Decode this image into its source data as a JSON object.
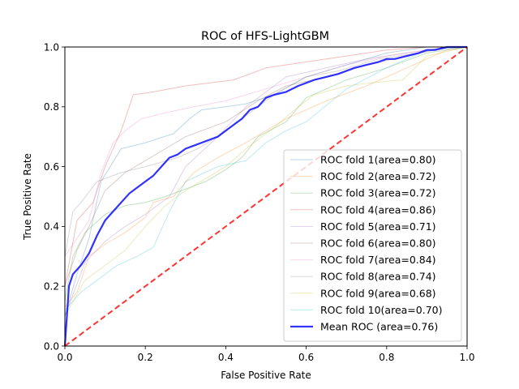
{
  "chart_data": {
    "type": "line",
    "title": "ROC of HFS-LightGBM",
    "xlabel": "False Positive Rate",
    "ylabel": "True Positive Rate",
    "xlim": [
      0.0,
      1.0
    ],
    "ylim": [
      0.0,
      1.0
    ],
    "xticks": [
      "0.0",
      "0.2",
      "0.4",
      "0.6",
      "0.8",
      "1.0"
    ],
    "yticks": [
      "0.0",
      "0.2",
      "0.4",
      "0.6",
      "0.8",
      "1.0"
    ],
    "grid": false,
    "legend_position": "lower right",
    "series": [
      {
        "name": "ROC fold 1(area=0.80)",
        "color": "#1f77b4",
        "emphasis": "faint",
        "x": [
          0,
          0,
          0.03,
          0.06,
          0.09,
          0.14,
          0.2,
          0.27,
          0.31,
          0.34,
          0.4,
          0.45,
          0.52,
          0.6,
          0.7,
          0.8,
          0.9,
          1
        ],
        "y": [
          0,
          0.1,
          0.24,
          0.36,
          0.55,
          0.66,
          0.68,
          0.71,
          0.76,
          0.79,
          0.8,
          0.81,
          0.84,
          0.9,
          0.94,
          0.98,
          1,
          1
        ]
      },
      {
        "name": "ROC fold 2(area=0.72)",
        "color": "#ff7f0e",
        "emphasis": "faint",
        "x": [
          0,
          0,
          0.03,
          0.06,
          0.1,
          0.15,
          0.2,
          0.22,
          0.27,
          0.32,
          0.38,
          0.45,
          0.55,
          0.65,
          0.75,
          0.85,
          0.95,
          1
        ],
        "y": [
          0,
          0.13,
          0.18,
          0.3,
          0.34,
          0.38,
          0.43,
          0.48,
          0.5,
          0.58,
          0.63,
          0.68,
          0.76,
          0.82,
          0.87,
          0.93,
          0.99,
          1
        ]
      },
      {
        "name": "ROC fold 3(area=0.72)",
        "color": "#2ca02c",
        "emphasis": "faint",
        "x": [
          0,
          0,
          0.02,
          0.05,
          0.1,
          0.15,
          0.2,
          0.25,
          0.35,
          0.4,
          0.44,
          0.48,
          0.55,
          0.6,
          0.7,
          0.8,
          0.9,
          1
        ],
        "y": [
          0,
          0.15,
          0.3,
          0.38,
          0.44,
          0.47,
          0.48,
          0.5,
          0.55,
          0.59,
          0.63,
          0.7,
          0.75,
          0.83,
          0.89,
          0.93,
          0.98,
          1
        ]
      },
      {
        "name": "ROC fold 4(area=0.86)",
        "color": "#d62728",
        "emphasis": "faint",
        "x": [
          0,
          0,
          0.03,
          0.07,
          0.1,
          0.14,
          0.17,
          0.22,
          0.3,
          0.42,
          0.5,
          0.6,
          0.7,
          0.8,
          0.9,
          1
        ],
        "y": [
          0,
          0.2,
          0.42,
          0.48,
          0.6,
          0.72,
          0.84,
          0.85,
          0.87,
          0.89,
          0.93,
          0.95,
          0.97,
          0.99,
          1,
          1
        ]
      },
      {
        "name": "ROC fold 5(area=0.71)",
        "color": "#9467bd",
        "emphasis": "faint",
        "x": [
          0,
          0,
          0.05,
          0.1,
          0.15,
          0.2,
          0.26,
          0.3,
          0.38,
          0.45,
          0.5,
          0.55,
          0.65,
          0.75,
          0.85,
          0.95,
          1
        ],
        "y": [
          0,
          0.1,
          0.28,
          0.35,
          0.4,
          0.44,
          0.5,
          0.6,
          0.7,
          0.8,
          0.85,
          0.9,
          0.93,
          0.96,
          0.98,
          1,
          1
        ]
      },
      {
        "name": "ROC fold 6(area=0.80)",
        "color": "#8c564b",
        "emphasis": "faint",
        "x": [
          0,
          0,
          0.03,
          0.06,
          0.1,
          0.15,
          0.2,
          0.25,
          0.3,
          0.4,
          0.48,
          0.55,
          0.65,
          0.75,
          0.85,
          0.95,
          1
        ],
        "y": [
          0,
          0.2,
          0.32,
          0.4,
          0.52,
          0.58,
          0.62,
          0.66,
          0.7,
          0.75,
          0.82,
          0.87,
          0.9,
          0.94,
          0.97,
          1,
          1
        ]
      },
      {
        "name": "ROC fold 7(area=0.84)",
        "color": "#e377c2",
        "emphasis": "faint",
        "x": [
          0,
          0,
          0.03,
          0.06,
          0.09,
          0.12,
          0.15,
          0.19,
          0.25,
          0.32,
          0.4,
          0.5,
          0.6,
          0.7,
          0.8,
          0.9,
          1
        ],
        "y": [
          0,
          0.3,
          0.36,
          0.42,
          0.58,
          0.68,
          0.72,
          0.76,
          0.78,
          0.8,
          0.82,
          0.86,
          0.9,
          0.94,
          0.97,
          0.99,
          1
        ]
      },
      {
        "name": "ROC fold 8(area=0.74)",
        "color": "#7f7f7f",
        "emphasis": "faint",
        "x": [
          0,
          0,
          0.02,
          0.04,
          0.08,
          0.14,
          0.2,
          0.28,
          0.33,
          0.38,
          0.45,
          0.53,
          0.6,
          0.68,
          0.78,
          0.88,
          0.96,
          1
        ],
        "y": [
          0,
          0.3,
          0.45,
          0.48,
          0.55,
          0.58,
          0.6,
          0.63,
          0.66,
          0.7,
          0.77,
          0.85,
          0.9,
          0.92,
          0.96,
          0.98,
          1,
          1
        ]
      },
      {
        "name": "ROC fold 9(area=0.68)",
        "color": "#bcbd22",
        "emphasis": "faint",
        "x": [
          0,
          0,
          0.05,
          0.1,
          0.15,
          0.2,
          0.25,
          0.3,
          0.4,
          0.45,
          0.52,
          0.58,
          0.62,
          0.7,
          0.76,
          0.84,
          0.9,
          1
        ],
        "y": [
          0,
          0.1,
          0.22,
          0.27,
          0.32,
          0.4,
          0.47,
          0.52,
          0.6,
          0.66,
          0.73,
          0.8,
          0.84,
          0.87,
          0.88,
          0.89,
          0.97,
          1
        ]
      },
      {
        "name": "ROC fold 10(area=0.70)",
        "color": "#17becf",
        "emphasis": "faint",
        "x": [
          0,
          0,
          0.04,
          0.08,
          0.13,
          0.18,
          0.22,
          0.26,
          0.3,
          0.38,
          0.45,
          0.5,
          0.55,
          0.6,
          0.7,
          0.8,
          0.9,
          1
        ],
        "y": [
          0,
          0.12,
          0.18,
          0.22,
          0.27,
          0.3,
          0.33,
          0.45,
          0.55,
          0.6,
          0.62,
          0.68,
          0.72,
          0.75,
          0.86,
          0.93,
          0.99,
          1
        ]
      },
      {
        "name": "Mean ROC (area=0.76)",
        "color": "#0000ff",
        "emphasis": "bold",
        "x": [
          0,
          0.01,
          0.02,
          0.04,
          0.06,
          0.08,
          0.1,
          0.12,
          0.14,
          0.16,
          0.18,
          0.2,
          0.22,
          0.24,
          0.26,
          0.28,
          0.3,
          0.32,
          0.34,
          0.36,
          0.38,
          0.4,
          0.42,
          0.44,
          0.46,
          0.48,
          0.5,
          0.52,
          0.55,
          0.58,
          0.6,
          0.62,
          0.65,
          0.68,
          0.7,
          0.72,
          0.75,
          0.78,
          0.8,
          0.82,
          0.85,
          0.88,
          0.9,
          0.92,
          0.95,
          1
        ],
        "y": [
          0,
          0.2,
          0.24,
          0.27,
          0.31,
          0.37,
          0.42,
          0.45,
          0.48,
          0.51,
          0.53,
          0.55,
          0.57,
          0.6,
          0.63,
          0.64,
          0.66,
          0.67,
          0.68,
          0.69,
          0.7,
          0.72,
          0.74,
          0.76,
          0.79,
          0.8,
          0.83,
          0.84,
          0.85,
          0.87,
          0.88,
          0.89,
          0.9,
          0.91,
          0.92,
          0.93,
          0.94,
          0.95,
          0.96,
          0.96,
          0.97,
          0.98,
          0.99,
          0.99,
          1,
          1
        ]
      }
    ],
    "reference_line": {
      "x": [
        0,
        1
      ],
      "y": [
        0,
        1
      ],
      "color": "#ff0000",
      "style": "dashed"
    }
  }
}
